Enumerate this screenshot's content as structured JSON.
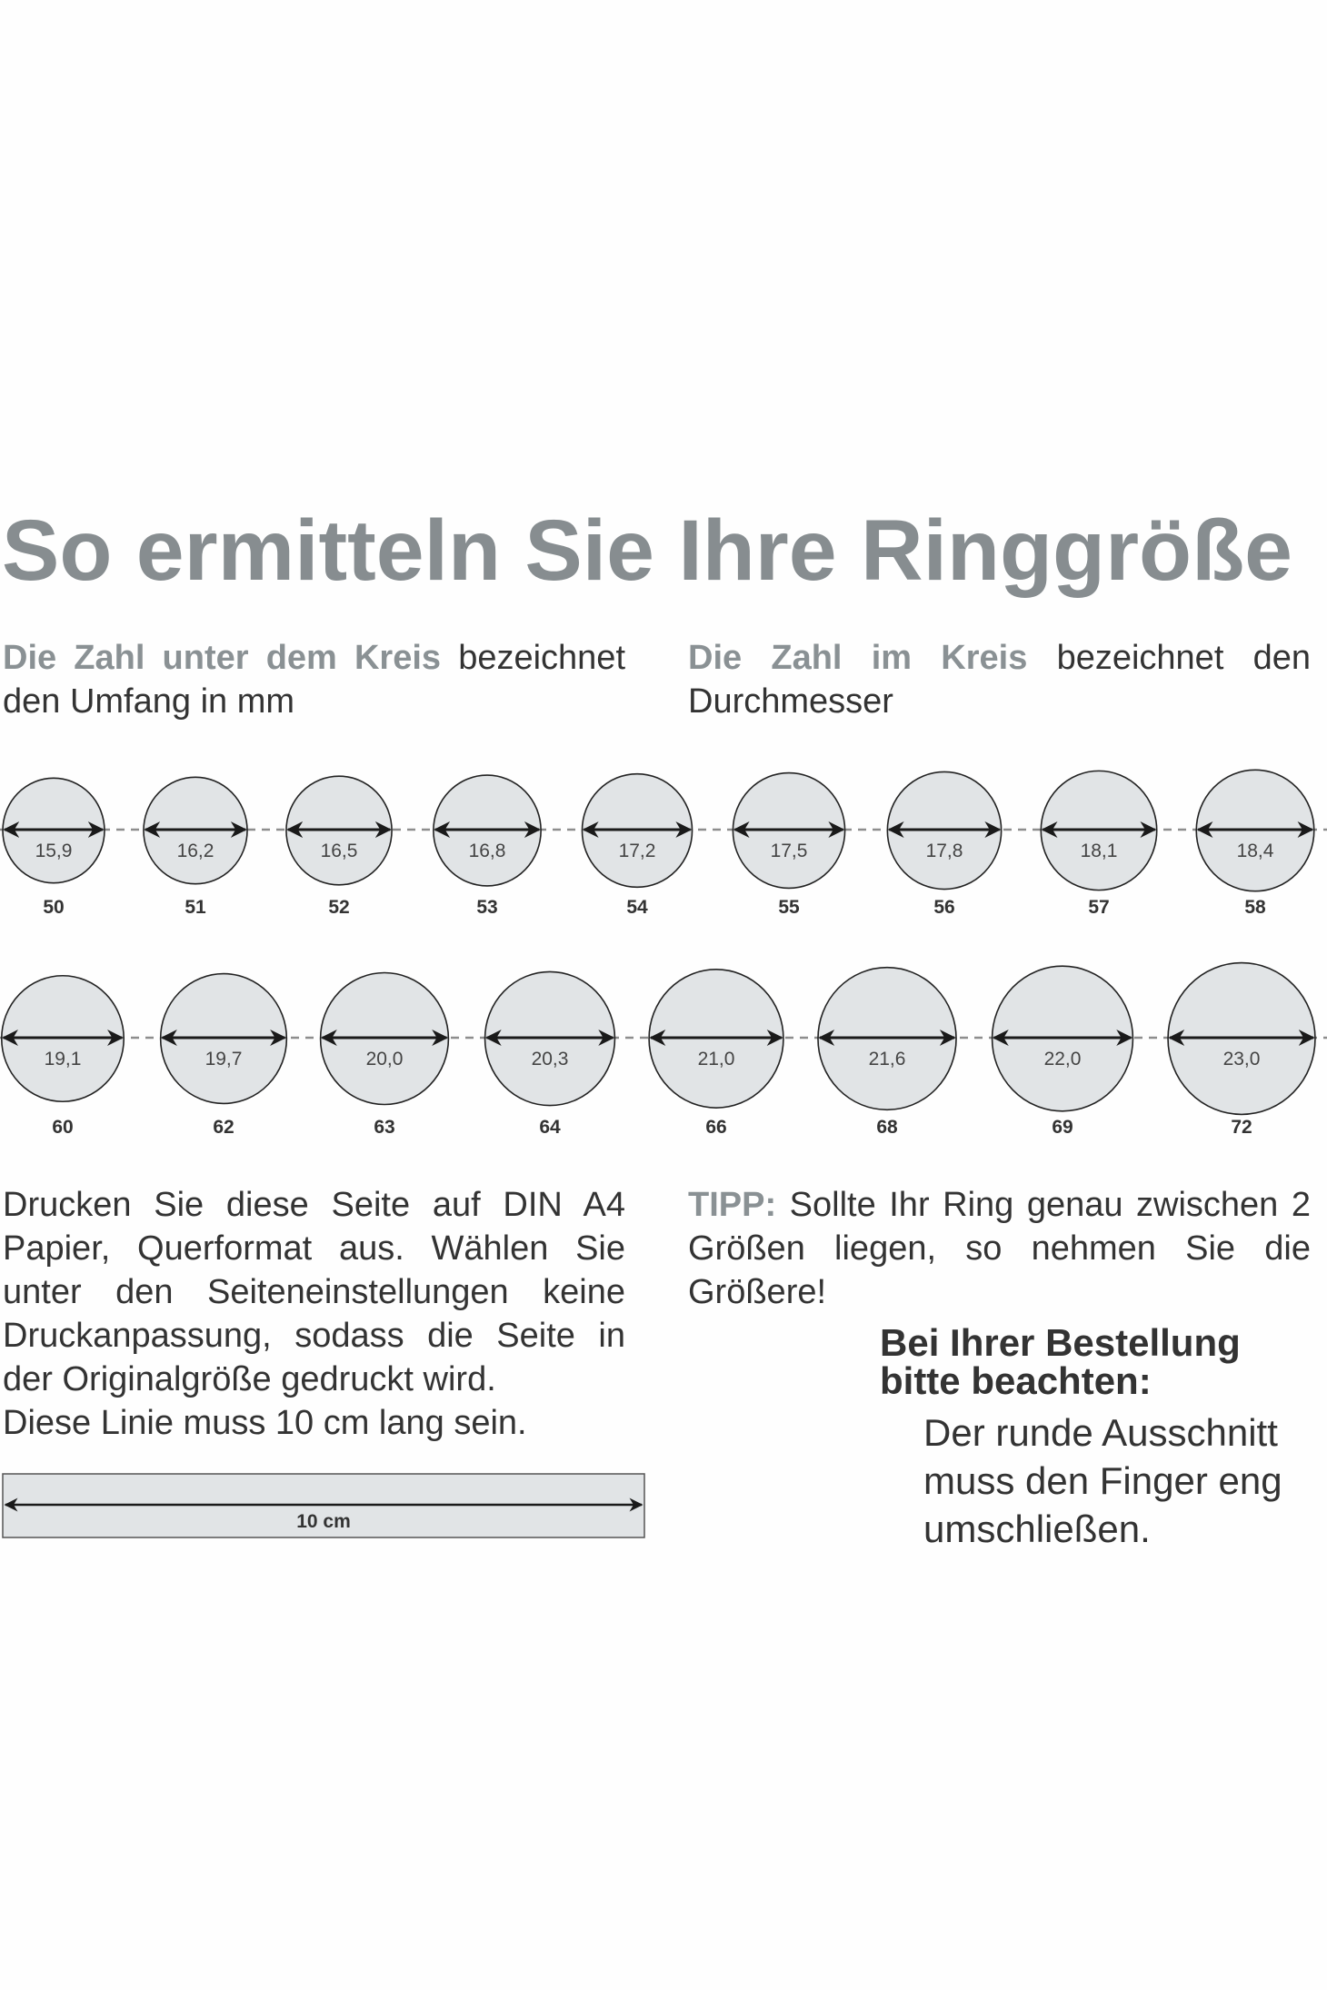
{
  "title": "So ermitteln Sie Ihre Ringgröße",
  "subtitle_left": {
    "highlight": "Die Zahl unter dem Kreis",
    "rest": " bezeichnet den Umfang in mm"
  },
  "subtitle_right": {
    "highlight": "Die Zahl im Kreis",
    "rest": " bezeichnet den Durchmesser"
  },
  "rings": {
    "row1": [
      {
        "diameter": "15,9",
        "size": "50"
      },
      {
        "diameter": "16,2",
        "size": "51"
      },
      {
        "diameter": "16,5",
        "size": "52"
      },
      {
        "diameter": "16,8",
        "size": "53"
      },
      {
        "diameter": "17,2",
        "size": "54"
      },
      {
        "diameter": "17,5",
        "size": "55"
      },
      {
        "diameter": "17,8",
        "size": "56"
      },
      {
        "diameter": "18,1",
        "size": "57"
      },
      {
        "diameter": "18,4",
        "size": "58"
      }
    ],
    "row2": [
      {
        "diameter": "19,1",
        "size": "60"
      },
      {
        "diameter": "19,7",
        "size": "62"
      },
      {
        "diameter": "20,0",
        "size": "63"
      },
      {
        "diameter": "20,3",
        "size": "64"
      },
      {
        "diameter": "21,0",
        "size": "66"
      },
      {
        "diameter": "21,6",
        "size": "68"
      },
      {
        "diameter": "22,0",
        "size": "69"
      },
      {
        "diameter": "23,0",
        "size": "72"
      }
    ]
  },
  "instructions": "Drucken Sie diese Seite auf DIN A4 Papier, Querformat aus. Wählen Sie unter den Seiteneinstellungen keine Druckanpassung, sodass die Seite in der Originalgröße gedruckt wird.",
  "line_note": "Diese Linie muss 10 cm lang sein.",
  "ruler_label": "10 cm",
  "tip": {
    "label": "TIPP:",
    "text": " Sollte Ihr Ring genau zwischen 2 Größen liegen, so nehmen Sie die Größere!"
  },
  "order_note": {
    "heading_line1": "Bei Ihrer Bestellung",
    "heading_line2": "bitte beachten:",
    "body_line1": "Der runde Ausschnitt",
    "body_line2": "muss den Finger eng",
    "body_line3": "umschließen."
  },
  "colors": {
    "circle_fill": "#e1e4e6",
    "highlight_text": "#8a9194",
    "text": "#333333"
  }
}
